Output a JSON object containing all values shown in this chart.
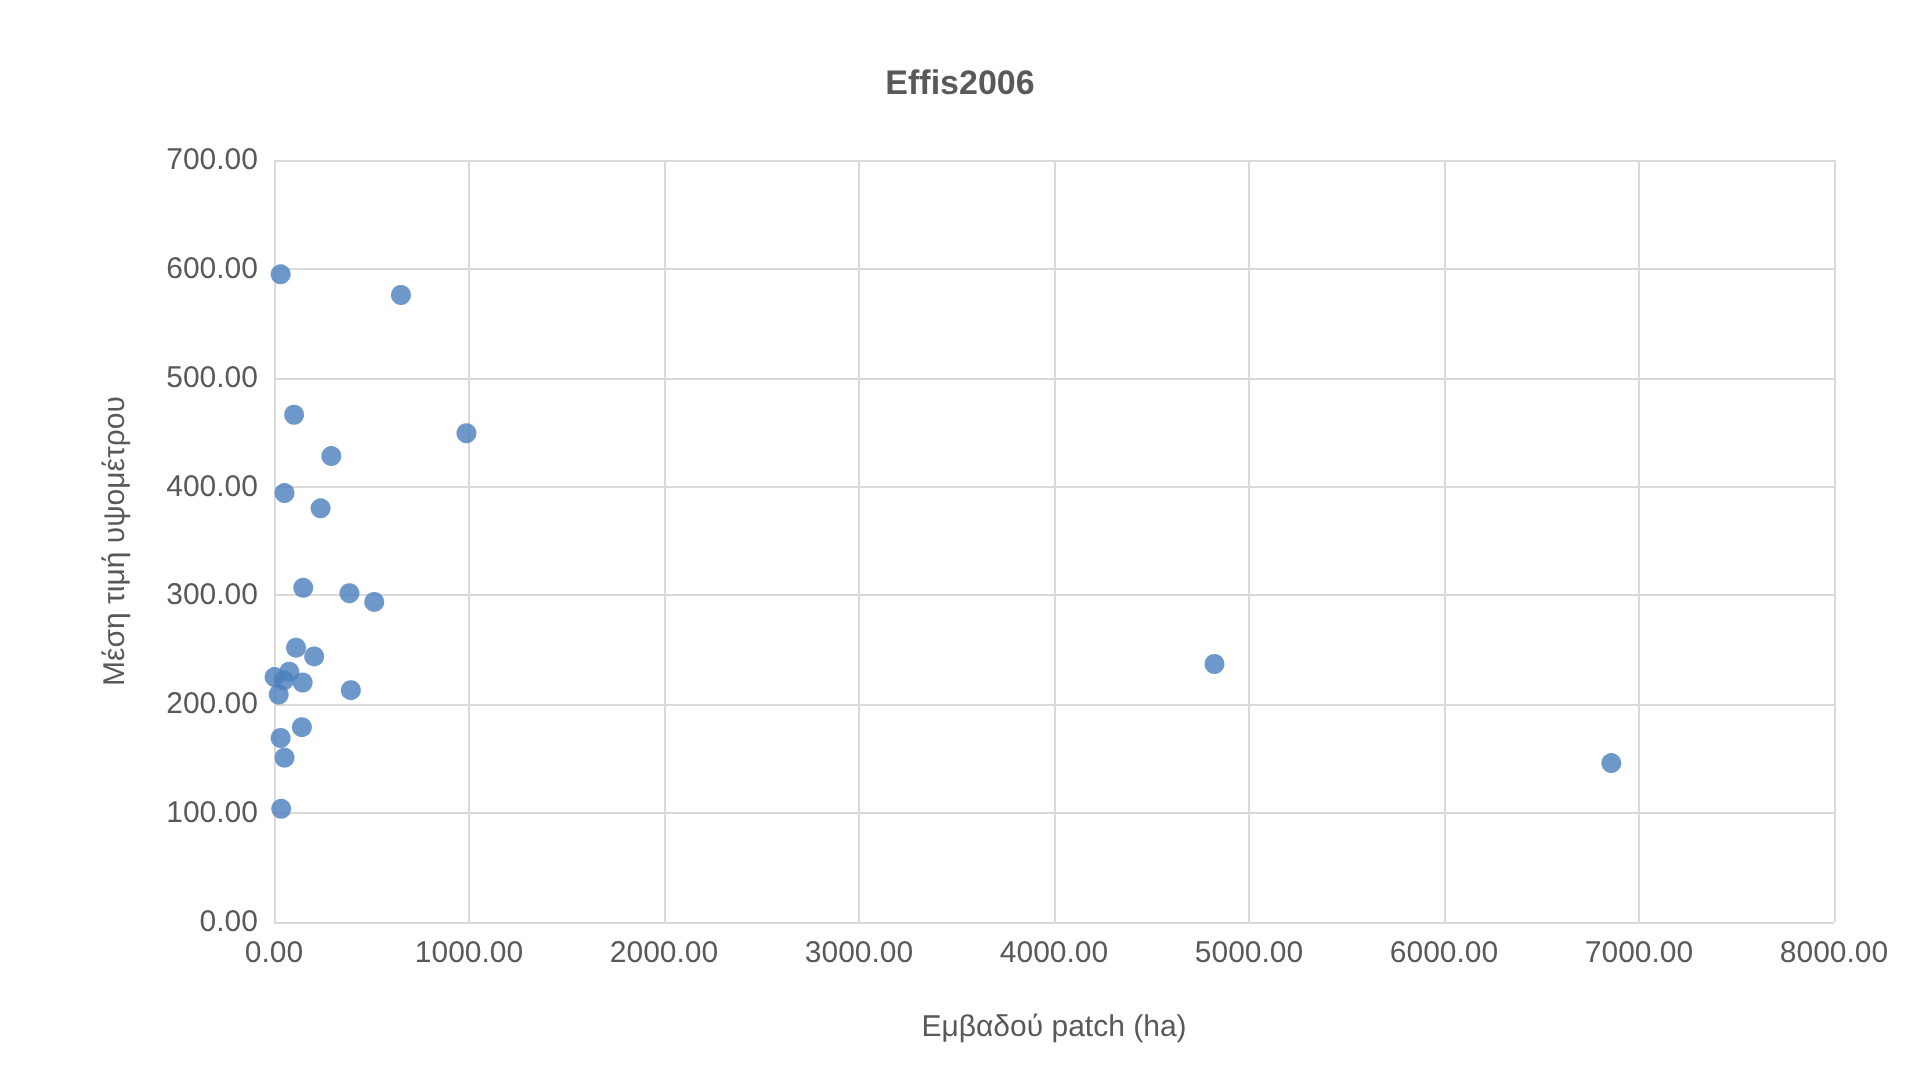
{
  "chart_data": {
    "type": "scatter",
    "title": "Effis2006",
    "xlabel": "Εμβαδού patch (ha)",
    "ylabel": "Μέση τιμή υψομέτρου",
    "x": [
      34,
      651,
      103,
      987,
      294,
      54,
      239,
      150,
      387,
      514,
      113,
      206,
      3,
      78,
      147,
      394,
      24,
      51,
      143,
      34,
      54,
      37,
      4823,
      6858
    ],
    "values": [
      595,
      576,
      466,
      449,
      428,
      394,
      380,
      307,
      302,
      294,
      252,
      244,
      225,
      230,
      220,
      213,
      209,
      222,
      179,
      169,
      151,
      104,
      237,
      146
    ],
    "color": "#4a7ebb",
    "marker": "circle",
    "grid": true,
    "xlim": [
      0,
      8000
    ],
    "xticks": [
      {
        "value": 0,
        "label": "0.00"
      },
      {
        "value": 1000,
        "label": "1000.00"
      },
      {
        "value": 2000,
        "label": "2000.00"
      },
      {
        "value": 3000,
        "label": "3000.00"
      },
      {
        "value": 4000,
        "label": "4000.00"
      },
      {
        "value": 5000,
        "label": "5000.00"
      },
      {
        "value": 6000,
        "label": "6000.00"
      },
      {
        "value": 7000,
        "label": "7000.00"
      },
      {
        "value": 8000,
        "label": "8000.00"
      }
    ],
    "ylim": [
      0,
      700
    ],
    "yticks": [
      {
        "value": 0,
        "label": "0.00"
      },
      {
        "value": 100,
        "label": "100.00"
      },
      {
        "value": 200,
        "label": "200.00"
      },
      {
        "value": 300,
        "label": "300.00"
      },
      {
        "value": 400,
        "label": "400.00"
      },
      {
        "value": 500,
        "label": "500.00"
      },
      {
        "value": 600,
        "label": "600.00"
      },
      {
        "value": 700,
        "label": "700.00"
      }
    ]
  }
}
